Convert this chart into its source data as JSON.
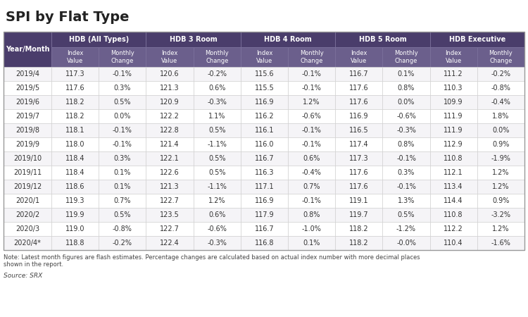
{
  "title": "SPI by Flat Type",
  "col_groups": [
    "HDB (All Types)",
    "HDB 3 Room",
    "HDB 4 Room",
    "HDB 5 Room",
    "HDB Executive"
  ],
  "rows": [
    [
      "2019/4",
      "117.3",
      "-0.1%",
      "120.6",
      "-0.2%",
      "115.6",
      "-0.1%",
      "116.7",
      "0.1%",
      "111.2",
      "-0.2%"
    ],
    [
      "2019/5",
      "117.6",
      "0.3%",
      "121.3",
      "0.6%",
      "115.5",
      "-0.1%",
      "117.6",
      "0.8%",
      "110.3",
      "-0.8%"
    ],
    [
      "2019/6",
      "118.2",
      "0.5%",
      "120.9",
      "-0.3%",
      "116.9",
      "1.2%",
      "117.6",
      "0.0%",
      "109.9",
      "-0.4%"
    ],
    [
      "2019/7",
      "118.2",
      "0.0%",
      "122.2",
      "1.1%",
      "116.2",
      "-0.6%",
      "116.9",
      "-0.6%",
      "111.9",
      "1.8%"
    ],
    [
      "2019/8",
      "118.1",
      "-0.1%",
      "122.8",
      "0.5%",
      "116.1",
      "-0.1%",
      "116.5",
      "-0.3%",
      "111.9",
      "0.0%"
    ],
    [
      "2019/9",
      "118.0",
      "-0.1%",
      "121.4",
      "-1.1%",
      "116.0",
      "-0.1%",
      "117.4",
      "0.8%",
      "112.9",
      "0.9%"
    ],
    [
      "2019/10",
      "118.4",
      "0.3%",
      "122.1",
      "0.5%",
      "116.7",
      "0.6%",
      "117.3",
      "-0.1%",
      "110.8",
      "-1.9%"
    ],
    [
      "2019/11",
      "118.4",
      "0.1%",
      "122.6",
      "0.5%",
      "116.3",
      "-0.4%",
      "117.6",
      "0.3%",
      "112.1",
      "1.2%"
    ],
    [
      "2019/12",
      "118.6",
      "0.1%",
      "121.3",
      "-1.1%",
      "117.1",
      "0.7%",
      "117.6",
      "-0.1%",
      "113.4",
      "1.2%"
    ],
    [
      "2020/1",
      "119.3",
      "0.7%",
      "122.7",
      "1.2%",
      "116.9",
      "-0.1%",
      "119.1",
      "1.3%",
      "114.4",
      "0.9%"
    ],
    [
      "2020/2",
      "119.9",
      "0.5%",
      "123.5",
      "0.6%",
      "117.9",
      "0.8%",
      "119.7",
      "0.5%",
      "110.8",
      "-3.2%"
    ],
    [
      "2020/3",
      "119.0",
      "-0.8%",
      "122.7",
      "-0.6%",
      "116.7",
      "-1.0%",
      "118.2",
      "-1.2%",
      "112.2",
      "1.2%"
    ],
    [
      "2020/4*",
      "118.8",
      "-0.2%",
      "122.4",
      "-0.3%",
      "116.8",
      "0.1%",
      "118.2",
      "-0.0%",
      "110.4",
      "-1.6%"
    ]
  ],
  "note": "Note: Latest month figures are flash estimates. Percentage changes are calculated based on actual index number with more decimal places\nshown in the report.",
  "source": "Source: SRX",
  "header_bg": "#4a3d6b",
  "header_text": "#ffffff",
  "subheader_bg": "#6b5f8c",
  "subheader_text": "#ffffff",
  "row_bg": [
    "#f5f4f7",
    "#ffffff"
  ],
  "row_text": "#333333",
  "title_color": "#222222",
  "title_fontsize": 14,
  "group_fontsize": 7,
  "subheader_fontsize": 6,
  "data_fontsize": 7,
  "note_fontsize": 6,
  "source_fontsize": 6.5
}
